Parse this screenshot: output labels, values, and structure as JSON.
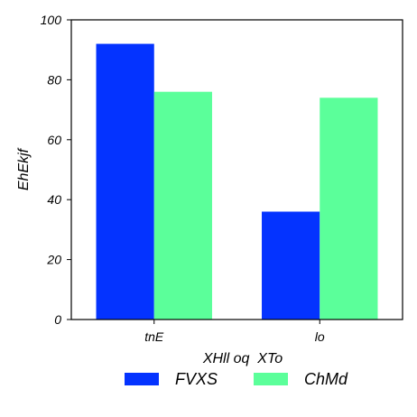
{
  "chart_data": {
    "type": "bar",
    "categories": [
      "tnE",
      "lo"
    ],
    "series": [
      {
        "name": "FVXS",
        "values": [
          92,
          36
        ],
        "color": "#0433ff"
      },
      {
        "name": "ChMd",
        "values": [
          76,
          74
        ],
        "color": "#5bff9a"
      }
    ],
    "xlabel": "XHll oq  XTo",
    "ylabel": "EhEkjf",
    "ylim": [
      0,
      100
    ],
    "yticks": [
      0,
      20,
      40,
      60,
      80,
      100
    ],
    "grid": false,
    "legend_position": "bottom"
  }
}
